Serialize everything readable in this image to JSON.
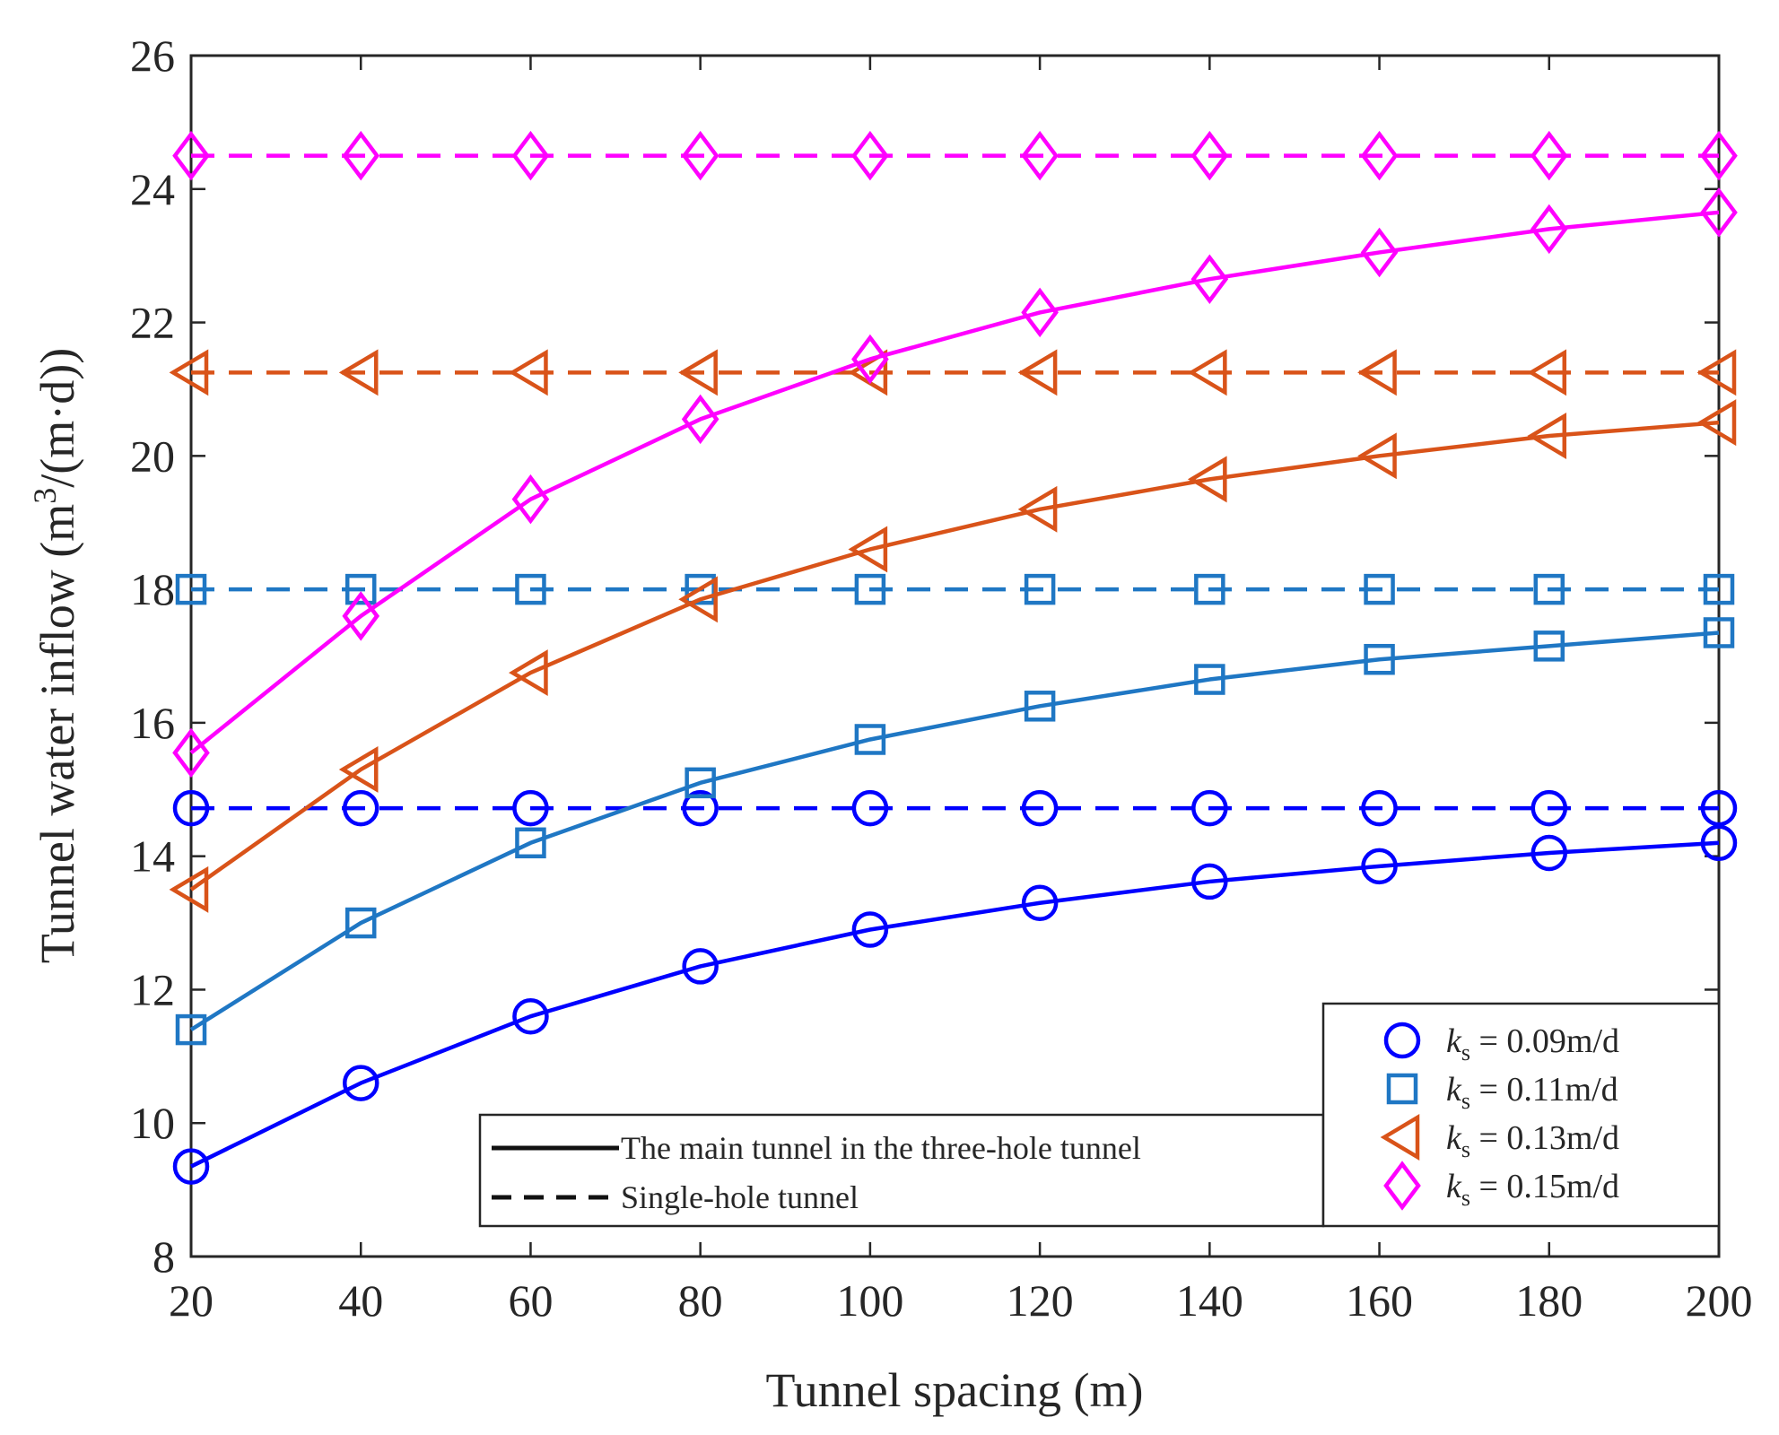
{
  "chart_data": {
    "type": "line",
    "xlabel": "Tunnel spacing (m)",
    "ylabel": {
      "prefix": "Tunnel water inflow (m",
      "sup": "3",
      "suffix": "/(m·d))"
    },
    "x": [
      20,
      40,
      60,
      80,
      100,
      120,
      140,
      160,
      180,
      200
    ],
    "xlim": [
      20,
      200
    ],
    "ylim": [
      8,
      26
    ],
    "xticks": [
      "20",
      "40",
      "60",
      "80",
      "100",
      "120",
      "140",
      "160",
      "180",
      "200"
    ],
    "yticks": [
      "8",
      "10",
      "12",
      "14",
      "16",
      "18",
      "20",
      "22",
      "24",
      "26"
    ],
    "grid": false,
    "series": [
      {
        "name": "k_s = 0.09m/d",
        "label_k": "k",
        "label_sub": "s",
        "label_rest": " = 0.09m/d",
        "color": "#0000ff",
        "marker": "circle",
        "main": [
          9.35,
          10.6,
          11.6,
          12.35,
          12.9,
          13.3,
          13.62,
          13.85,
          14.05,
          14.2
        ],
        "single": 14.72
      },
      {
        "name": "k_s = 0.11m/d",
        "label_k": "k",
        "label_sub": "s",
        "label_rest": " = 0.11m/d",
        "color": "#1f77c4",
        "marker": "square",
        "main": [
          11.4,
          13.0,
          14.2,
          15.1,
          15.75,
          16.25,
          16.65,
          16.95,
          17.15,
          17.35
        ],
        "single": 18.0
      },
      {
        "name": "k_s = 0.13m/d",
        "label_k": "k",
        "label_sub": "s",
        "label_rest": " = 0.13m/d",
        "color": "#d95319",
        "marker": "triangle-left",
        "main": [
          13.5,
          15.3,
          16.75,
          17.85,
          18.6,
          19.2,
          19.65,
          20.0,
          20.3,
          20.5
        ],
        "single": 21.25
      },
      {
        "name": "k_s = 0.15m/d",
        "label_k": "k",
        "label_sub": "s",
        "label_rest": " = 0.15m/d",
        "color": "#ff00ff",
        "marker": "diamond",
        "main": [
          15.55,
          17.6,
          19.35,
          20.55,
          21.45,
          22.15,
          22.65,
          23.05,
          23.4,
          23.65
        ],
        "single": 24.5
      }
    ],
    "line_legend": {
      "solid": "The main tunnel in the three-hole tunnel",
      "dashed": "Single-hole tunnel"
    }
  }
}
